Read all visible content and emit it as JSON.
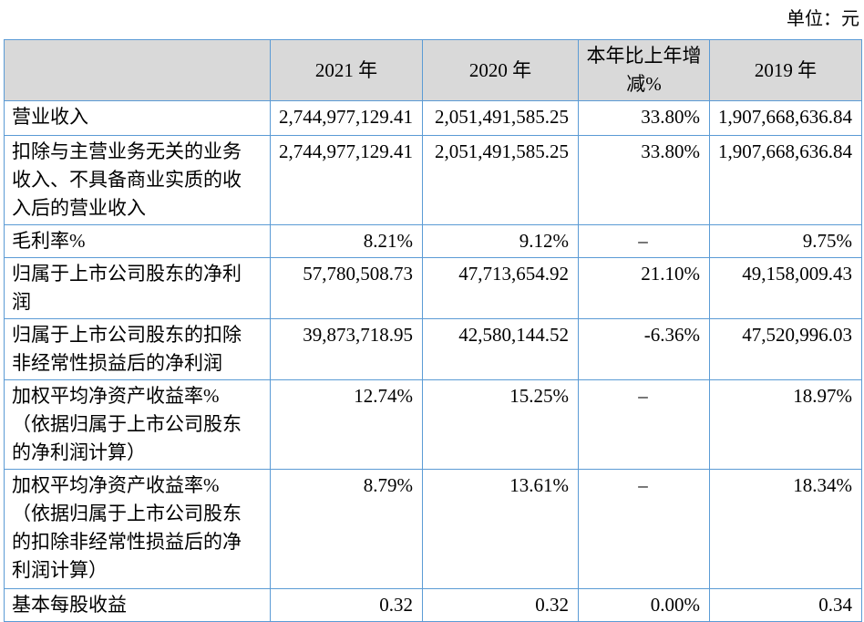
{
  "unit_label": "单位：元",
  "colors": {
    "border": "#5b9bd5",
    "header_bg": "#d9d9d9"
  },
  "table": {
    "header": {
      "label": "",
      "y2021": "2021 年",
      "y2020": "2020 年",
      "change": "本年比上年增减%",
      "y2019": "2019 年"
    },
    "rows": [
      {
        "label": "营业收入",
        "y2021": "2,744,977,129.41",
        "y2020": "2,051,491,585.25",
        "change": "33.80%",
        "y2019": "1,907,668,636.84"
      },
      {
        "label": "扣除与主营业务无关的业务收入、不具备商业实质的收入后的营业收入",
        "y2021": "2,744,977,129.41",
        "y2020": "2,051,491,585.25",
        "change": "33.80%",
        "y2019": "1,907,668,636.84"
      },
      {
        "label": "毛利率%",
        "y2021": "8.21%",
        "y2020": "9.12%",
        "change": "–",
        "y2019": "9.75%"
      },
      {
        "label": "归属于上市公司股东的净利润",
        "y2021": "57,780,508.73",
        "y2020": "47,713,654.92",
        "change": "21.10%",
        "y2019": "49,158,009.43"
      },
      {
        "label": "归属于上市公司股东的扣除非经常性损益后的净利润",
        "y2021": "39,873,718.95",
        "y2020": "42,580,144.52",
        "change": "-6.36%",
        "y2019": "47,520,996.03"
      },
      {
        "label": "加权平均净资产收益率%（依据归属于上市公司股东的净利润计算）",
        "y2021": "12.74%",
        "y2020": "15.25%",
        "change": "–",
        "y2019": "18.97%"
      },
      {
        "label": "加权平均净资产收益率%（依据归属于上市公司股东的扣除非经常性损益后的净利润计算）",
        "y2021": "8.79%",
        "y2020": "13.61%",
        "change": "–",
        "y2019": "18.34%"
      },
      {
        "label": "基本每股收益",
        "y2021": "0.32",
        "y2020": "0.32",
        "change": "0.00%",
        "y2019": "0.34"
      }
    ]
  }
}
